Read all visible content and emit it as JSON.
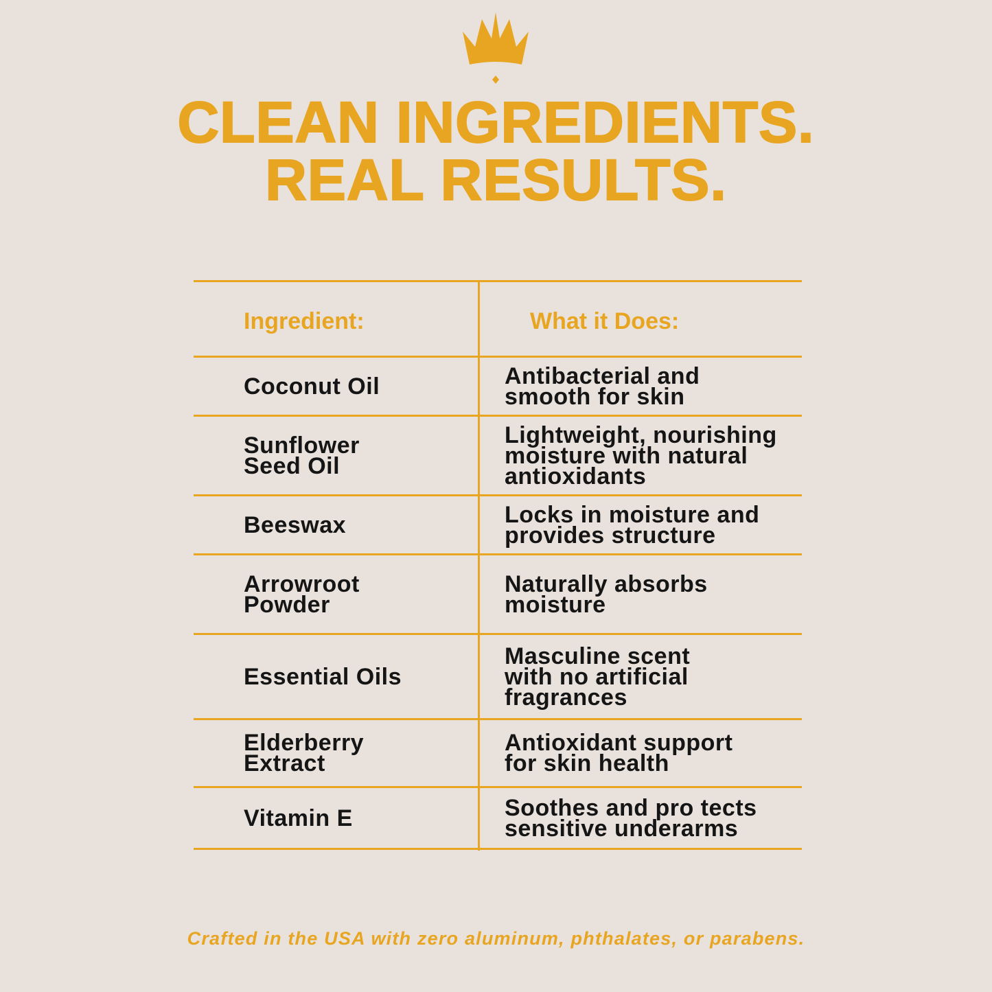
{
  "logo": {
    "icon": "crown-icon",
    "accent": "#e8a521"
  },
  "title": {
    "line1": "CLEAN INGREDIENTS.",
    "line2": "REAL RESULTS."
  },
  "table": {
    "headers": {
      "ingredient": "Ingredient:",
      "function": "What it Does:"
    },
    "rows": [
      {
        "ingredient": "Coconut Oil",
        "function": "Antibacterial and\nsmooth for skin"
      },
      {
        "ingredient": "Sunflower\nSeed Oil",
        "function": "Lightweight, nourishing\nmoisture with natural\nantioxidants"
      },
      {
        "ingredient": "Beeswax",
        "function": "Locks in moisture and\nprovides structure"
      },
      {
        "ingredient": "Arrowroot\nPowder",
        "function": "Naturally absorbs\nmoisture"
      },
      {
        "ingredient": "Essential Oils",
        "function": "Masculine scent\nwith no artificial\nfragrances"
      },
      {
        "ingredient": "Elderberry\nExtract",
        "function": "Antioxidant support\nfor skin health"
      },
      {
        "ingredient": "Vitamin E",
        "function": "Soothes and pro tects\nsensitive underarms"
      }
    ]
  },
  "footer": "Crafted in the USA with zero aluminum, phthalates, or parabens.",
  "colors": {
    "background": "#e9e2dc",
    "accent": "#e8a521",
    "text": "#151515"
  }
}
